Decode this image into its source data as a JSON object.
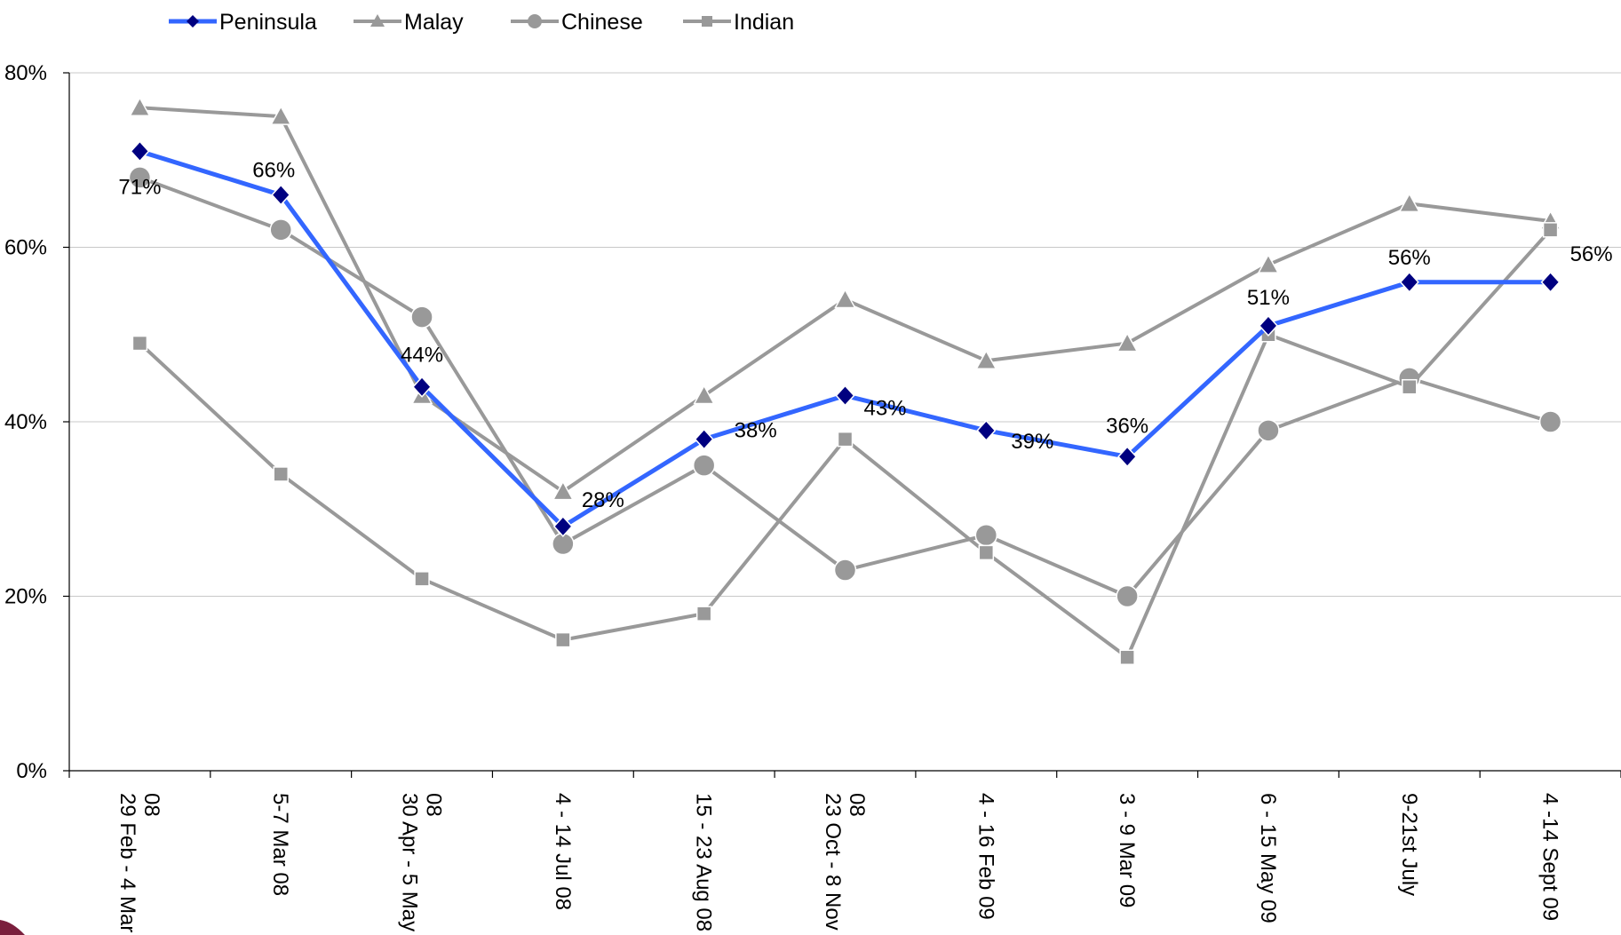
{
  "chart_data": {
    "type": "line",
    "title": "",
    "xlabel": "",
    "ylabel": "",
    "ylim": [
      0,
      80
    ],
    "yticks": [
      0,
      20,
      40,
      60,
      80
    ],
    "ytick_labels": [
      "0%",
      "20%",
      "40%",
      "60%",
      "80%"
    ],
    "grid": true,
    "legend_position": "top",
    "categories": [
      [
        "29 Feb - 4 Mar",
        "08"
      ],
      [
        "5-7 Mar 08"
      ],
      [
        "30 Apr - 5 May",
        "08"
      ],
      [
        "4 - 14 Jul 08"
      ],
      [
        "15 - 23 Aug 08"
      ],
      [
        "23 Oct - 8 Nov",
        "08"
      ],
      [
        "4 - 16 Feb 09"
      ],
      [
        "3 - 9 Mar 09"
      ],
      [
        "6 - 15 May 09"
      ],
      [
        "9-21st July"
      ],
      [
        "4 -14 Sept 09"
      ]
    ],
    "series": [
      {
        "name": "Malay",
        "marker": "triangle",
        "color": "#999999",
        "values": [
          76,
          75,
          43,
          32,
          43,
          54,
          47,
          49,
          58,
          65,
          63
        ]
      },
      {
        "name": "Chinese",
        "marker": "circle",
        "color": "#999999",
        "values": [
          68,
          62,
          52,
          26,
          35,
          23,
          27,
          20,
          39,
          45,
          40
        ]
      },
      {
        "name": "Indian",
        "marker": "square",
        "color": "#999999",
        "values": [
          49,
          34,
          22,
          15,
          18,
          38,
          25,
          13,
          50,
          44,
          62
        ]
      },
      {
        "name": "Peninsula",
        "marker": "diamond",
        "color": "#3366ff",
        "marker_color": "#000080",
        "values": [
          71,
          66,
          44,
          28,
          38,
          43,
          39,
          36,
          51,
          56,
          56
        ],
        "data_labels": [
          "71%",
          "66%",
          "44%",
          "28%",
          "38%",
          "43%",
          "39%",
          "36%",
          "51%",
          "56%",
          "56%"
        ]
      }
    ],
    "legend_order": [
      "Peninsula",
      "Malay",
      "Chinese",
      "Indian"
    ]
  }
}
